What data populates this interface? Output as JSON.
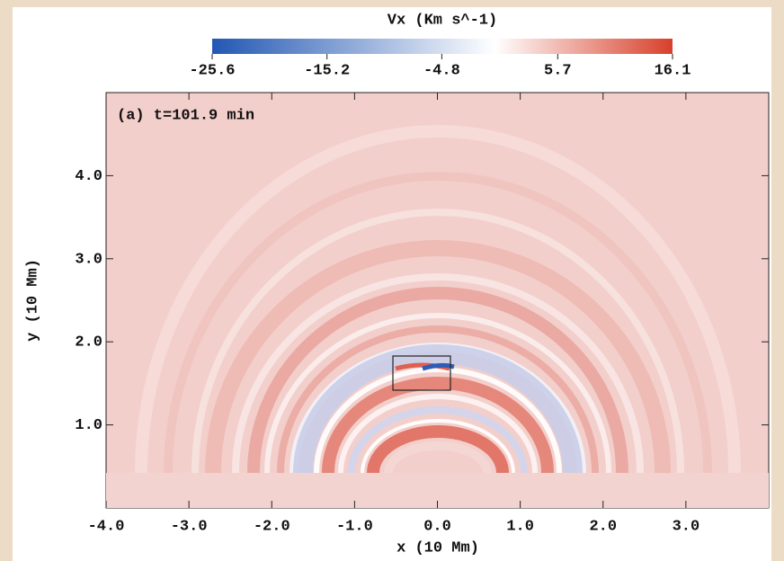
{
  "chart_data": {
    "type": "heatmap",
    "colorbar": {
      "title": "Vx (Km s^-1)",
      "lim": [
        -25.6,
        16.1
      ],
      "ticks": [
        -25.6,
        -15.2,
        -4.8,
        5.7,
        16.1
      ],
      "colors": [
        "#2257b3",
        "#ffffff",
        "#d8402b"
      ]
    },
    "annotation": "(a) t=101.9 min",
    "xlabel": "x (10 Mm)",
    "ylabel": "y (10 Mm)",
    "xlim": [
      -4,
      4
    ],
    "ylim": [
      0,
      5
    ],
    "xticks": [
      {
        "value": -4,
        "label": "-4.0"
      },
      {
        "value": -3,
        "label": "-3.0"
      },
      {
        "value": -2,
        "label": "-2.0"
      },
      {
        "value": -1,
        "label": "-1.0"
      },
      {
        "value": 0,
        "label": "0.0"
      },
      {
        "value": 1,
        "label": "1.0"
      },
      {
        "value": 2,
        "label": "2.0"
      },
      {
        "value": 3,
        "label": "3.0"
      }
    ],
    "yticks": [
      {
        "value": 1,
        "label": "1.0"
      },
      {
        "value": 2,
        "label": "2.0"
      },
      {
        "value": 3,
        "label": "3.0"
      },
      {
        "value": 4,
        "label": "4.0"
      }
    ]
  }
}
